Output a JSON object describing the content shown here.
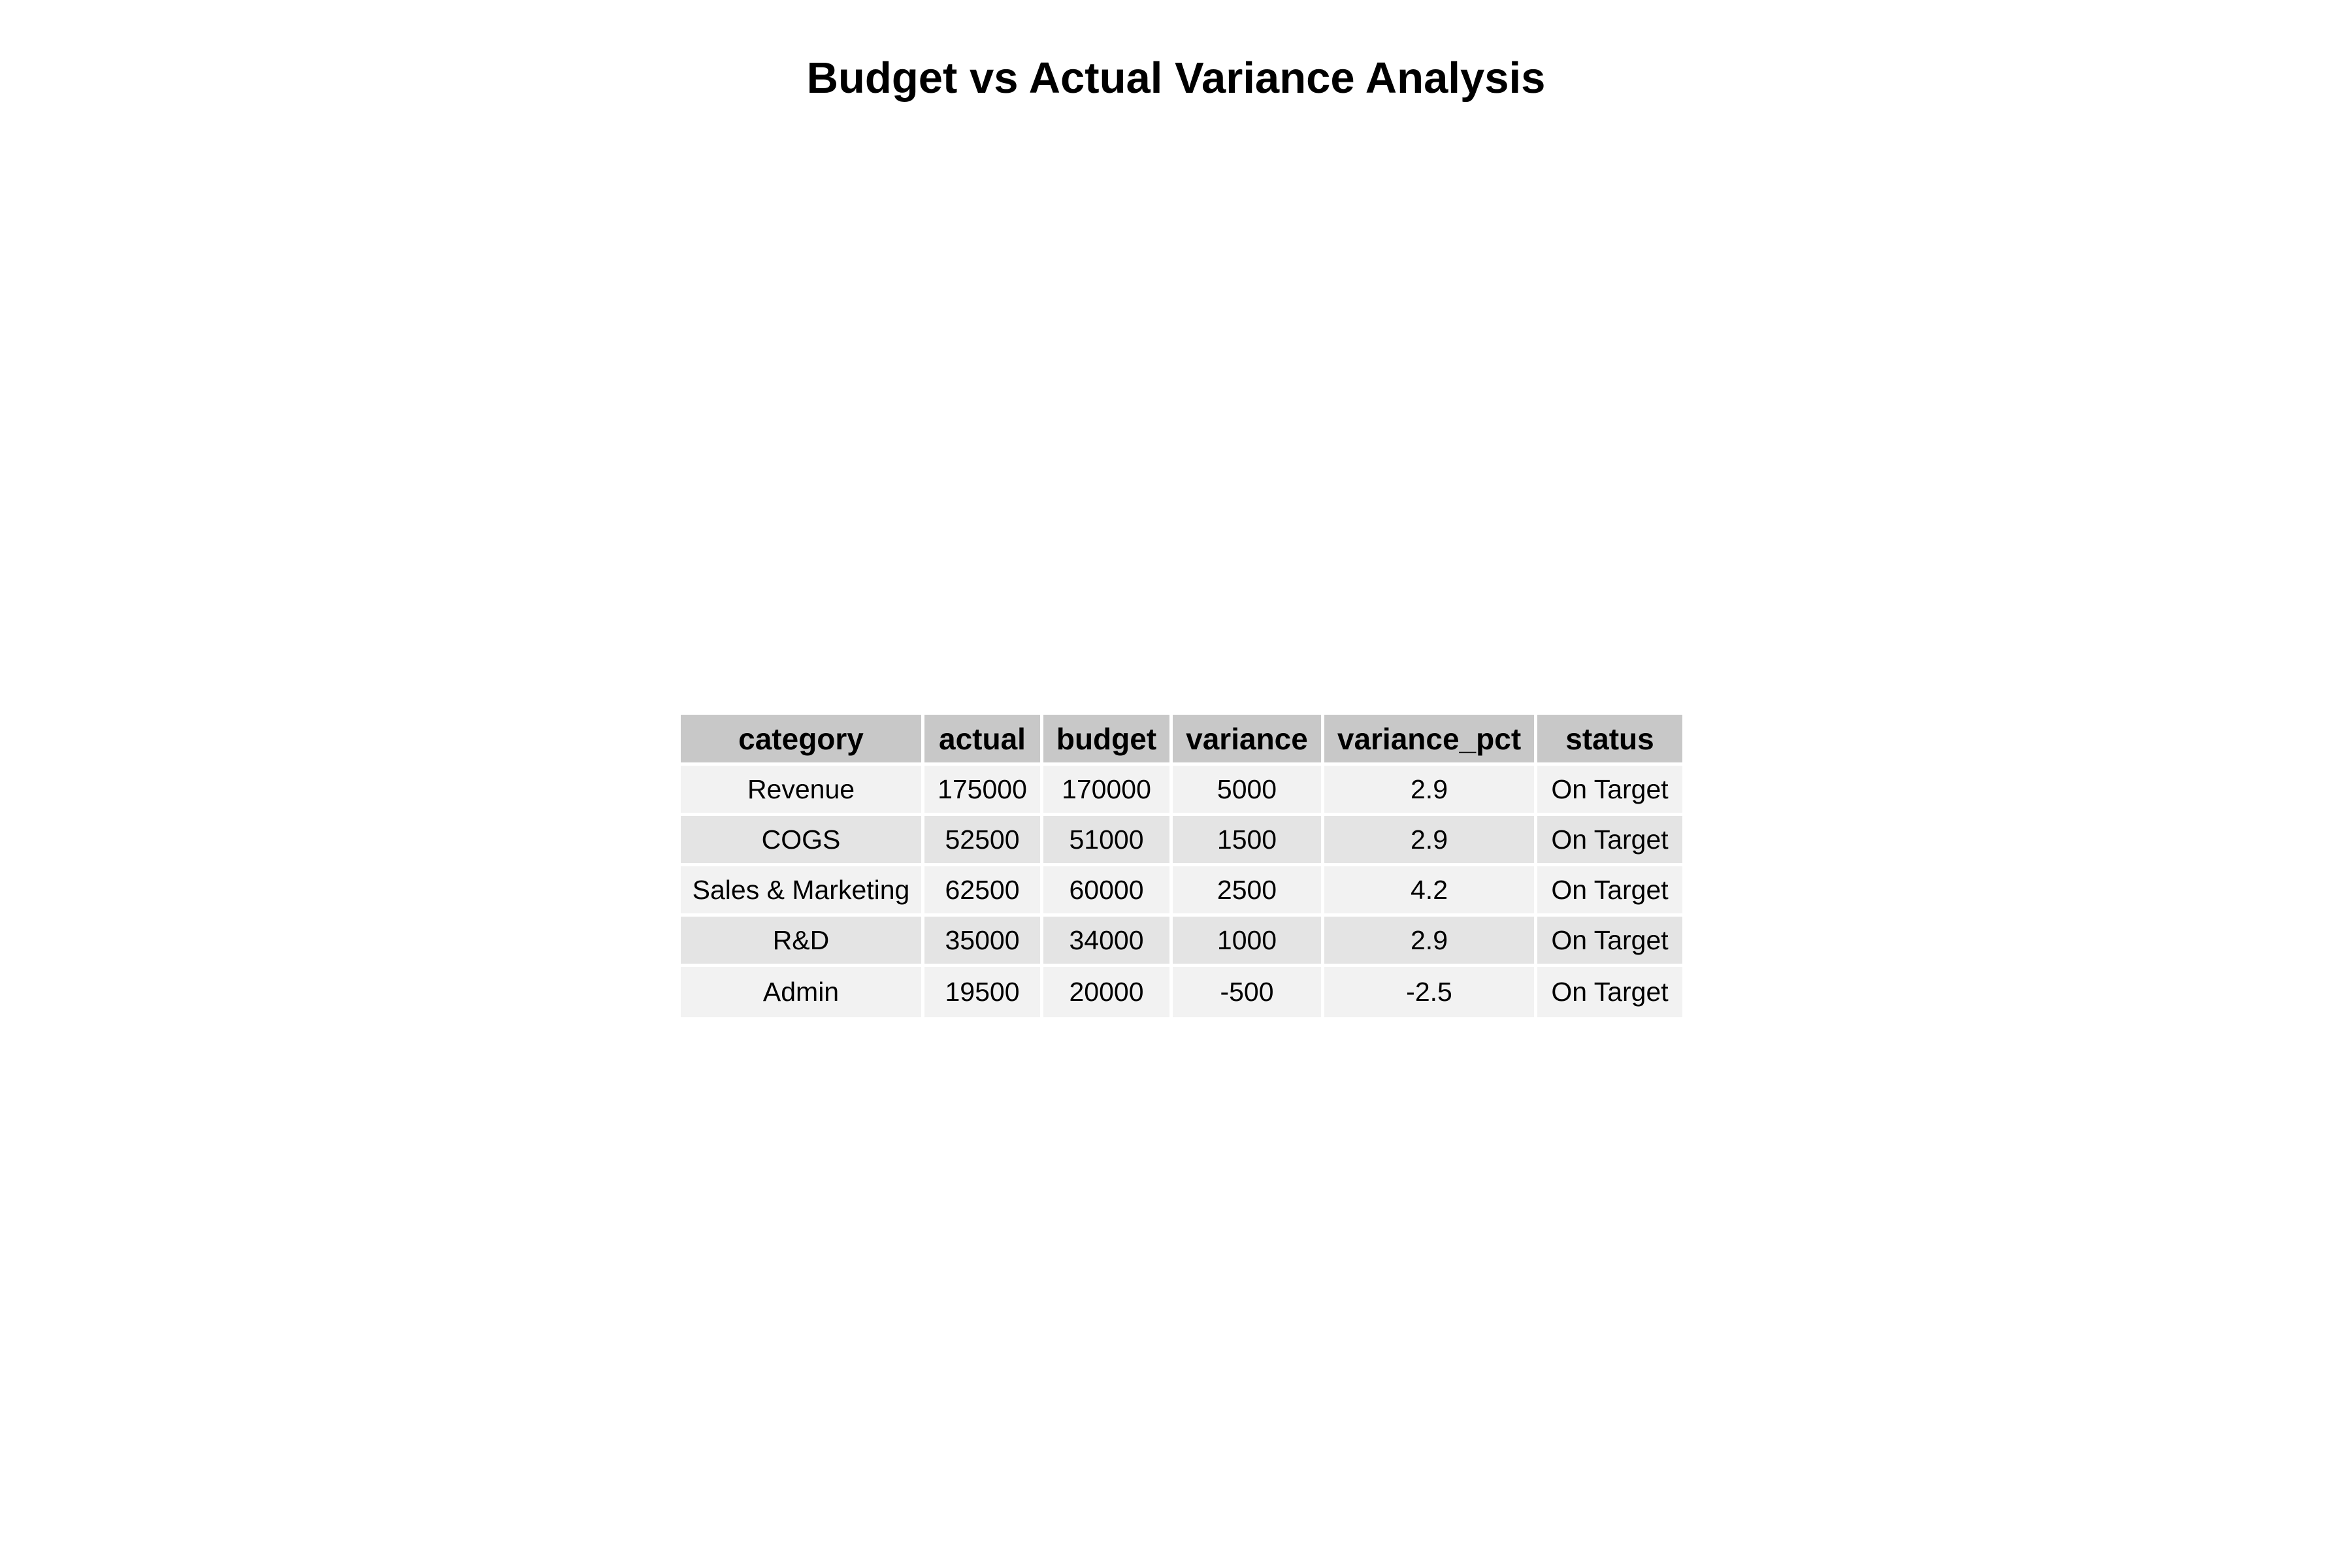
{
  "chart_data": {
    "type": "table",
    "title": "Budget vs Actual Variance Analysis",
    "columns": [
      "category",
      "actual",
      "budget",
      "variance",
      "variance_pct",
      "status"
    ],
    "rows": [
      [
        "Revenue",
        "175000",
        "170000",
        "5000",
        "2.9",
        "On Target"
      ],
      [
        "COGS",
        "52500",
        "51000",
        "1500",
        "2.9",
        "On Target"
      ],
      [
        "Sales & Marketing",
        "62500",
        "60000",
        "2500",
        "4.2",
        "On Target"
      ],
      [
        "R&D",
        "35000",
        "34000",
        "1000",
        "2.9",
        "On Target"
      ],
      [
        "Admin",
        "19500",
        "20000",
        "-500",
        "-2.5",
        "On Target"
      ]
    ],
    "colors": {
      "header_fill": "#c8c8c8",
      "row_fill_odd": "#f2f2f2",
      "row_fill_even": "#e4e4e4",
      "grid_line": "#ffffff"
    }
  }
}
